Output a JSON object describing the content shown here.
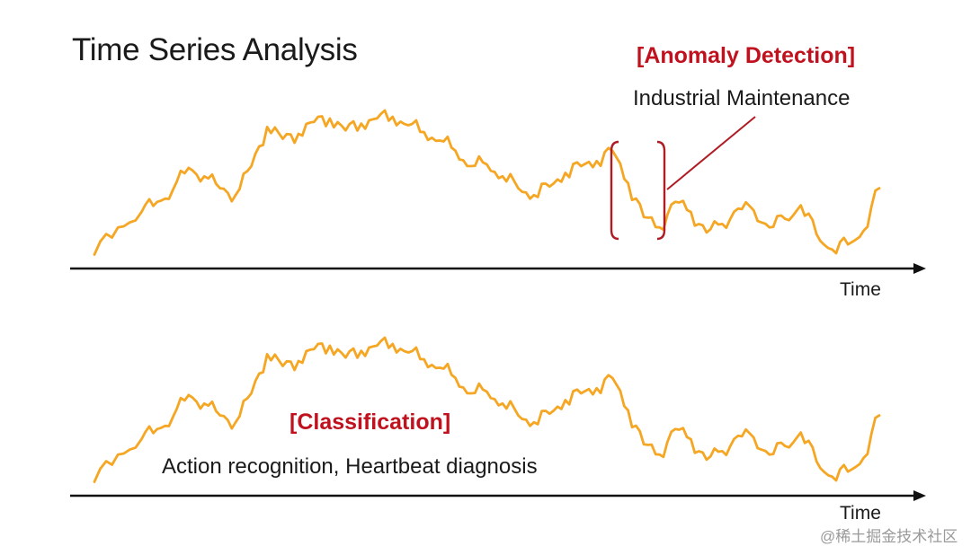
{
  "slide": {
    "title": "Time Series Analysis",
    "anomaly": {
      "heading": "[Anomaly Detection]",
      "subtitle": "Industrial Maintenance"
    },
    "classification": {
      "heading": "[Classification]",
      "subtitle": "Action recognition, Heartbeat diagnosis"
    },
    "axis_label_top": "Time",
    "axis_label_bottom": "Time",
    "watermark": "@稀土掘金技术社区"
  },
  "colors": {
    "series": "#f5a623",
    "accent_red": "#b01c24",
    "axis": "#111111",
    "text": "#1a1a1a"
  },
  "chart_data": [
    {
      "type": "line",
      "x": [
        0,
        3,
        6,
        8,
        10,
        12,
        14,
        16,
        18,
        20,
        22,
        24,
        26,
        28,
        30,
        32,
        34,
        36,
        38,
        40,
        42,
        44,
        46,
        48,
        50,
        52,
        54,
        56,
        58,
        60,
        62,
        64,
        66,
        68,
        70,
        72,
        74,
        76,
        78,
        80,
        82,
        84,
        86,
        88,
        90,
        92,
        94,
        96,
        98,
        100
      ],
      "series": [
        {
          "values": [
            0.5,
            2.1,
            3.0,
            3.6,
            4.3,
            5.6,
            5.1,
            4.4,
            4.0,
            5.7,
            8.0,
            7.3,
            7.6,
            8.3,
            8.5,
            7.8,
            8.2,
            8.5,
            8.6,
            8.1,
            7.7,
            7.2,
            6.6,
            5.7,
            5.8,
            5.1,
            4.4,
            4.0,
            4.5,
            5.3,
            5.7,
            6.0,
            6.6,
            4.7,
            2.7,
            2.1,
            3.6,
            3.0,
            1.8,
            2.3,
            3.2,
            3.1,
            2.1,
            2.6,
            3.4,
            1.7,
            0.8,
            1.1,
            1.9,
            4.4
          ]
        }
      ],
      "anomaly_window": [
        66,
        72
      ]
    },
    {
      "type": "line",
      "x": [
        0,
        3,
        6,
        8,
        10,
        12,
        14,
        16,
        18,
        20,
        22,
        24,
        26,
        28,
        30,
        32,
        34,
        36,
        38,
        40,
        42,
        44,
        46,
        48,
        50,
        52,
        54,
        56,
        58,
        60,
        62,
        64,
        66,
        68,
        70,
        72,
        74,
        76,
        78,
        80,
        82,
        84,
        86,
        88,
        90,
        92,
        94,
        96,
        98,
        100
      ],
      "series": [
        {
          "values": [
            0.5,
            2.1,
            3.0,
            3.6,
            4.3,
            5.6,
            5.1,
            4.4,
            4.0,
            5.7,
            8.0,
            7.3,
            7.6,
            8.3,
            8.5,
            7.8,
            8.2,
            8.5,
            8.6,
            8.1,
            7.7,
            7.2,
            6.6,
            5.7,
            5.8,
            5.1,
            4.4,
            4.0,
            4.5,
            5.3,
            5.7,
            6.0,
            6.6,
            4.7,
            2.7,
            2.1,
            3.6,
            3.0,
            1.8,
            2.3,
            3.2,
            3.1,
            2.1,
            2.6,
            3.4,
            1.7,
            0.8,
            1.1,
            1.9,
            4.4
          ]
        }
      ]
    }
  ]
}
